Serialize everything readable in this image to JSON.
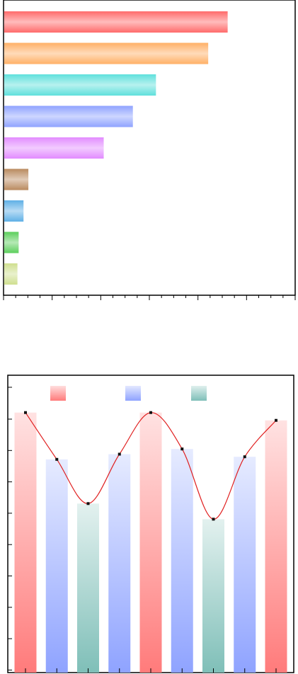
{
  "chart_data": [
    {
      "type": "bar",
      "orientation": "horizontal",
      "title": "",
      "xlabel": "",
      "ylabel": "",
      "categories": [
        "",
        "",
        "",
        "",
        "",
        "",
        "",
        "",
        ""
      ],
      "values": [
        92,
        84,
        62.5,
        53,
        41,
        10,
        8,
        6,
        5.5
      ],
      "colors": [
        "#ff6b6b",
        "#ffb066",
        "#5fe0dc",
        "#8fa3ff",
        "#e28cff",
        "#b98a5e",
        "#5fb0e6",
        "#5ccf5c",
        "#cfdf8f"
      ],
      "xlim": [
        0,
        120
      ],
      "grid": false,
      "legend": false
    },
    {
      "type": "bar",
      "title": "",
      "xlabel": "",
      "ylabel": "",
      "categories": [
        "",
        "",
        "",
        "",
        "",
        "",
        "",
        "",
        ""
      ],
      "values": [
        100,
        82,
        65,
        84,
        100,
        86,
        59,
        83,
        97
      ],
      "colors": [
        "#ff7b7b",
        "#8fa3ff",
        "#7fbfb8",
        "#8fa3ff",
        "#ff7b7b",
        "#8fa3ff",
        "#7fbfb8",
        "#8fa3ff",
        "#ff7b7b"
      ],
      "ylim": [
        0,
        110
      ],
      "line_overlay": {
        "values": [
          100,
          82,
          65,
          84,
          100,
          86,
          59,
          83,
          97
        ],
        "color": "#e02020",
        "smooth": true
      },
      "legend": {
        "placement": "top",
        "entries": [
          {
            "label": "",
            "color": "#ff7b7b"
          },
          {
            "label": "",
            "color": "#8fa3ff"
          },
          {
            "label": "",
            "color": "#7fbfb8"
          }
        ]
      },
      "grid": false
    }
  ]
}
